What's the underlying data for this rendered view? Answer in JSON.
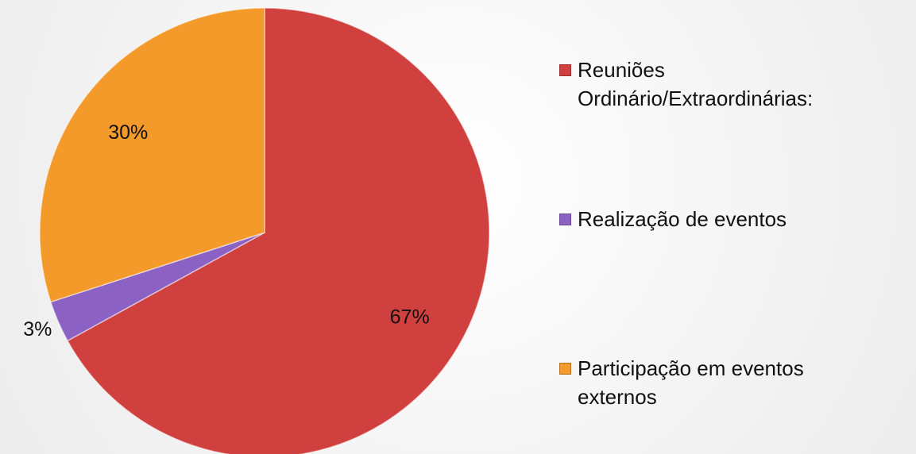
{
  "chart_data": {
    "type": "pie",
    "categories": [
      "Reuniões Ordinário/Extraordinárias:",
      "Realização de eventos",
      "Participação em eventos externos"
    ],
    "values": [
      67,
      3,
      30
    ],
    "value_labels": [
      "67%",
      "3%",
      "30%"
    ],
    "colors": [
      "#d0403e",
      "#8b62c4",
      "#f39a2a"
    ],
    "legend": "right"
  }
}
